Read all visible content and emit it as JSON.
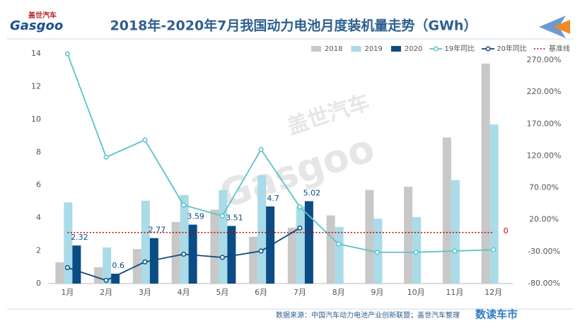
{
  "logo": {
    "name": "Gasgoo",
    "cn": "盖世汽车"
  },
  "watermark": {
    "cn": "盖世汽车",
    "en": "Gasgoo"
  },
  "source": "数据来源：中国汽车动力电池产业创新联盟；盖世汽车整理",
  "brand": "数读车市",
  "chart_data": {
    "type": "bar",
    "title": "2018年-2020年7月我国动力电池月度装机量走势（GWh）",
    "categories": [
      "1月",
      "2月",
      "3月",
      "4月",
      "5月",
      "6月",
      "7月",
      "8月",
      "9月",
      "10月",
      "11月",
      "12月"
    ],
    "series": [
      {
        "name": "2018",
        "type": "bar",
        "color": "#c8c8c8",
        "values": [
          1.3,
          1.0,
          2.1,
          3.75,
          4.5,
          2.85,
          3.4,
          4.15,
          5.7,
          5.9,
          8.9,
          13.4
        ]
      },
      {
        "name": "2019",
        "type": "bar",
        "color": "#a9dbe8",
        "values": [
          4.95,
          2.2,
          5.05,
          5.4,
          5.7,
          6.6,
          4.7,
          3.45,
          3.95,
          4.05,
          6.3,
          9.7
        ]
      },
      {
        "name": "2020",
        "type": "bar",
        "color": "#0b4c84",
        "values": [
          2.32,
          0.6,
          2.77,
          3.59,
          3.51,
          4.7,
          5.02,
          null,
          null,
          null,
          null,
          null
        ],
        "data_labels": true
      },
      {
        "name": "19年同比",
        "type": "line",
        "axis": "y2",
        "color": "#5bc3c8",
        "values": [
          280,
          118,
          145,
          43,
          26,
          130,
          40,
          -18,
          -31,
          -31,
          -29,
          -27
        ]
      },
      {
        "name": "20年同比",
        "type": "line",
        "axis": "y2",
        "color": "#0d4a7f",
        "values": [
          -55,
          -75,
          -46,
          -34,
          -39,
          -29,
          7,
          null,
          null,
          null,
          null,
          null
        ]
      },
      {
        "name": "基准线",
        "type": "dotted",
        "axis": "y2",
        "color": "#c00000",
        "values": [
          0,
          0,
          0,
          0,
          0,
          0,
          0,
          0,
          0,
          0,
          0,
          0
        ]
      }
    ],
    "ylim": [
      0,
      14
    ],
    "yticks": [
      0,
      2,
      4,
      6,
      8,
      10,
      12,
      14
    ],
    "y2lim": [
      -80,
      280
    ],
    "y2ticks": [
      {
        "value": -80,
        "label": "-80.00%"
      },
      {
        "value": -30,
        "label": "-30.00%"
      },
      {
        "value": 20,
        "label": "20.00%"
      },
      {
        "value": 70,
        "label": "70.00%"
      },
      {
        "value": 120,
        "label": "120.00%"
      },
      {
        "value": 170,
        "label": "170.00%"
      },
      {
        "value": 220,
        "label": "220.00%"
      },
      {
        "value": 270,
        "label": "270.00%"
      }
    ],
    "legend": "top-right"
  }
}
